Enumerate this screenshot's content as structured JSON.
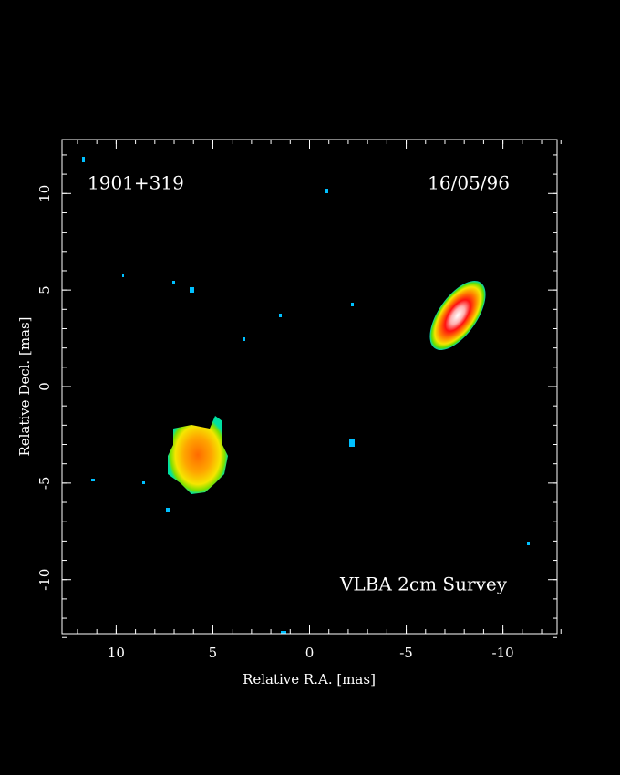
{
  "chart_data": {
    "type": "image",
    "xlabel": "Relative R.A. [mas]",
    "ylabel": "Relative Decl. [mas]",
    "xlim": [
      12.8,
      -12.8
    ],
    "ylim": [
      -12.8,
      12.8
    ],
    "xticks": [
      10,
      5,
      0,
      -5,
      -10
    ],
    "yticks": [
      -10,
      -5,
      0,
      5,
      10
    ],
    "annotations": [
      "1901+319",
      "16/05/96",
      "VLBA 2cm Survey"
    ]
  }
}
